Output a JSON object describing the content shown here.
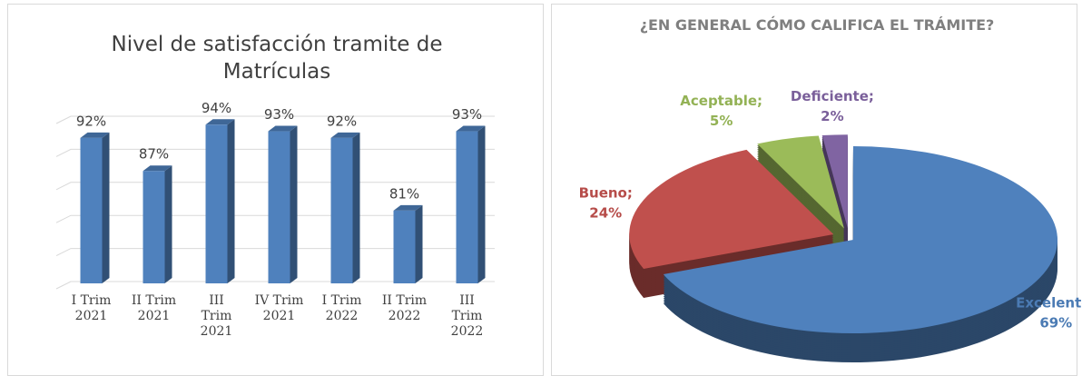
{
  "chart_data": [
    {
      "type": "bar",
      "title": "Nivel de satisfacción tramite de Matrículas",
      "categories": [
        "I Trim 2021",
        "II Trim 2021",
        "III Trim 2021",
        "IV Trim 2021",
        "I Trim 2022",
        "II Trim 2022",
        "III Trim 2022"
      ],
      "values": [
        92,
        87,
        94,
        93,
        92,
        81,
        93
      ],
      "value_labels": [
        "92%",
        "87%",
        "94%",
        "93%",
        "92%",
        "81%",
        "93%"
      ],
      "color": "#4f81bd",
      "ylim": [
        70,
        95
      ],
      "yticks": [
        70,
        75,
        80,
        85,
        90,
        95
      ],
      "grid": true
    },
    {
      "type": "pie",
      "title": "¿EN GENERAL CÓMO CALIFICA EL TRÁMITE?",
      "categories": [
        "Excelente",
        "Bueno",
        "Aceptable",
        "Deficiente"
      ],
      "values": [
        69,
        24,
        5,
        2
      ],
      "value_labels": [
        "69%",
        "24%",
        "5%",
        "2%"
      ],
      "label_separator": ";",
      "colors": [
        "#4f81bd",
        "#c0504d",
        "#9bbb59",
        "#8064a2"
      ]
    }
  ]
}
